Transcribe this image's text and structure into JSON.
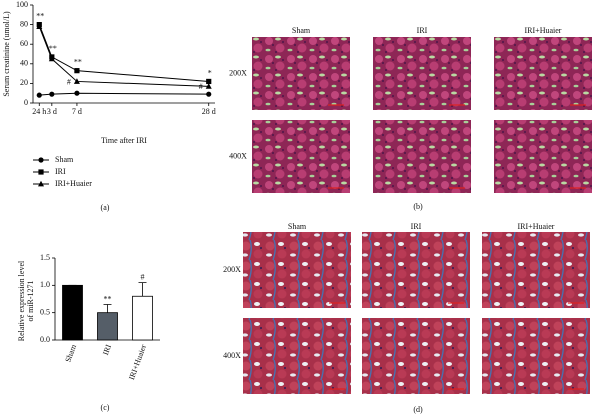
{
  "chart_data": [
    {
      "type": "line",
      "panel": "(a)",
      "y_label": "Serum creatinine (umol/L)",
      "x_label": "Time after IRI",
      "x": [
        1,
        3,
        7,
        28
      ],
      "xlim": [
        0,
        29
      ],
      "xticks": [
        {
          "value": 1,
          "label": "24 h"
        },
        {
          "value": 3,
          "label": "3 d"
        },
        {
          "value": 7,
          "label": "7 d"
        },
        {
          "value": 28,
          "label": "28 d"
        }
      ],
      "ylim": [
        0,
        100
      ],
      "yticks": [
        0,
        20,
        40,
        60,
        80,
        100
      ],
      "series": [
        {
          "name": "Sham",
          "color": "#000000",
          "marker": "circle",
          "values": [
            8,
            9,
            10,
            9
          ],
          "significance": [
            null,
            null,
            null,
            null
          ]
        },
        {
          "name": "IRI",
          "color": "#000000",
          "marker": "square",
          "values": [
            80,
            47,
            33,
            22
          ],
          "significance": [
            "**",
            "**",
            "**",
            "*"
          ]
        },
        {
          "name": "IRI+Huaier",
          "color": "#000000",
          "marker": "triangle",
          "values": [
            78,
            45,
            22,
            17
          ],
          "significance": [
            null,
            null,
            "#",
            "#"
          ]
        }
      ]
    },
    {
      "type": "bar",
      "panel": "(c)",
      "y_label": [
        "Relative expression level",
        "of miR-1271"
      ],
      "categories": [
        "Sham",
        "IRI",
        "IRI+Huaier"
      ],
      "values": [
        1.0,
        0.5,
        0.8
      ],
      "errors": [
        0,
        0.15,
        0.25
      ],
      "colors": [
        "#000000",
        "#555e68",
        "#ffffff"
      ],
      "significance": [
        null,
        "**",
        "#"
      ],
      "ylim": [
        0,
        1.5
      ],
      "yticks": [
        {
          "value": 0,
          "label": "0.0"
        },
        {
          "value": 0.5,
          "label": "0.5"
        },
        {
          "value": 1.0,
          "label": "1.0"
        },
        {
          "value": 1.5,
          "label": "1.5"
        }
      ]
    }
  ],
  "image_panels": [
    {
      "label": "(b)",
      "columns": [
        "Sham",
        "IRI",
        "IRI+Huaier"
      ],
      "rows": [
        "200X",
        "400X"
      ]
    },
    {
      "label": "(d)",
      "columns": [
        "Sham",
        "IRI",
        "IRI+Huaier"
      ],
      "rows": [
        "200X",
        "400X"
      ]
    }
  ]
}
